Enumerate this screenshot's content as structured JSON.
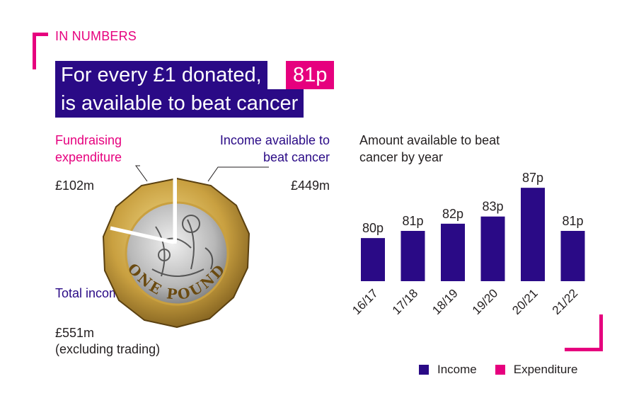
{
  "kicker": "IN NUMBERS",
  "headline": {
    "line1": "For every £1 donated,",
    "badge": "81p",
    "line2": "is available to beat cancer"
  },
  "donut": {
    "fundraising_label": "Fundraising expenditure",
    "fundraising_amount": "£102m",
    "income_label": "Income available to beat cancer",
    "income_amount": "£449m",
    "total_label": "Total income",
    "total_amount": "£551m",
    "total_note": "(excluding trading)",
    "coin_text": "ONE POUND"
  },
  "chart_data": {
    "type": "bar",
    "title": "Amount available to beat cancer by year",
    "categories": [
      "16/17",
      "17/18",
      "18/19",
      "19/20",
      "20/21",
      "21/22"
    ],
    "values": [
      80,
      81,
      82,
      83,
      87,
      81
    ],
    "data_labels": [
      "80p",
      "81p",
      "82p",
      "83p",
      "87p",
      "81p"
    ],
    "ylim": [
      74,
      88
    ],
    "grid": false
  },
  "legend": {
    "items": [
      {
        "label": "Income",
        "color": "#2a0a86"
      },
      {
        "label": "Expenditure",
        "color": "#e6007e"
      }
    ]
  },
  "colors": {
    "navy": "#2a0a86",
    "pink": "#e6007e"
  }
}
